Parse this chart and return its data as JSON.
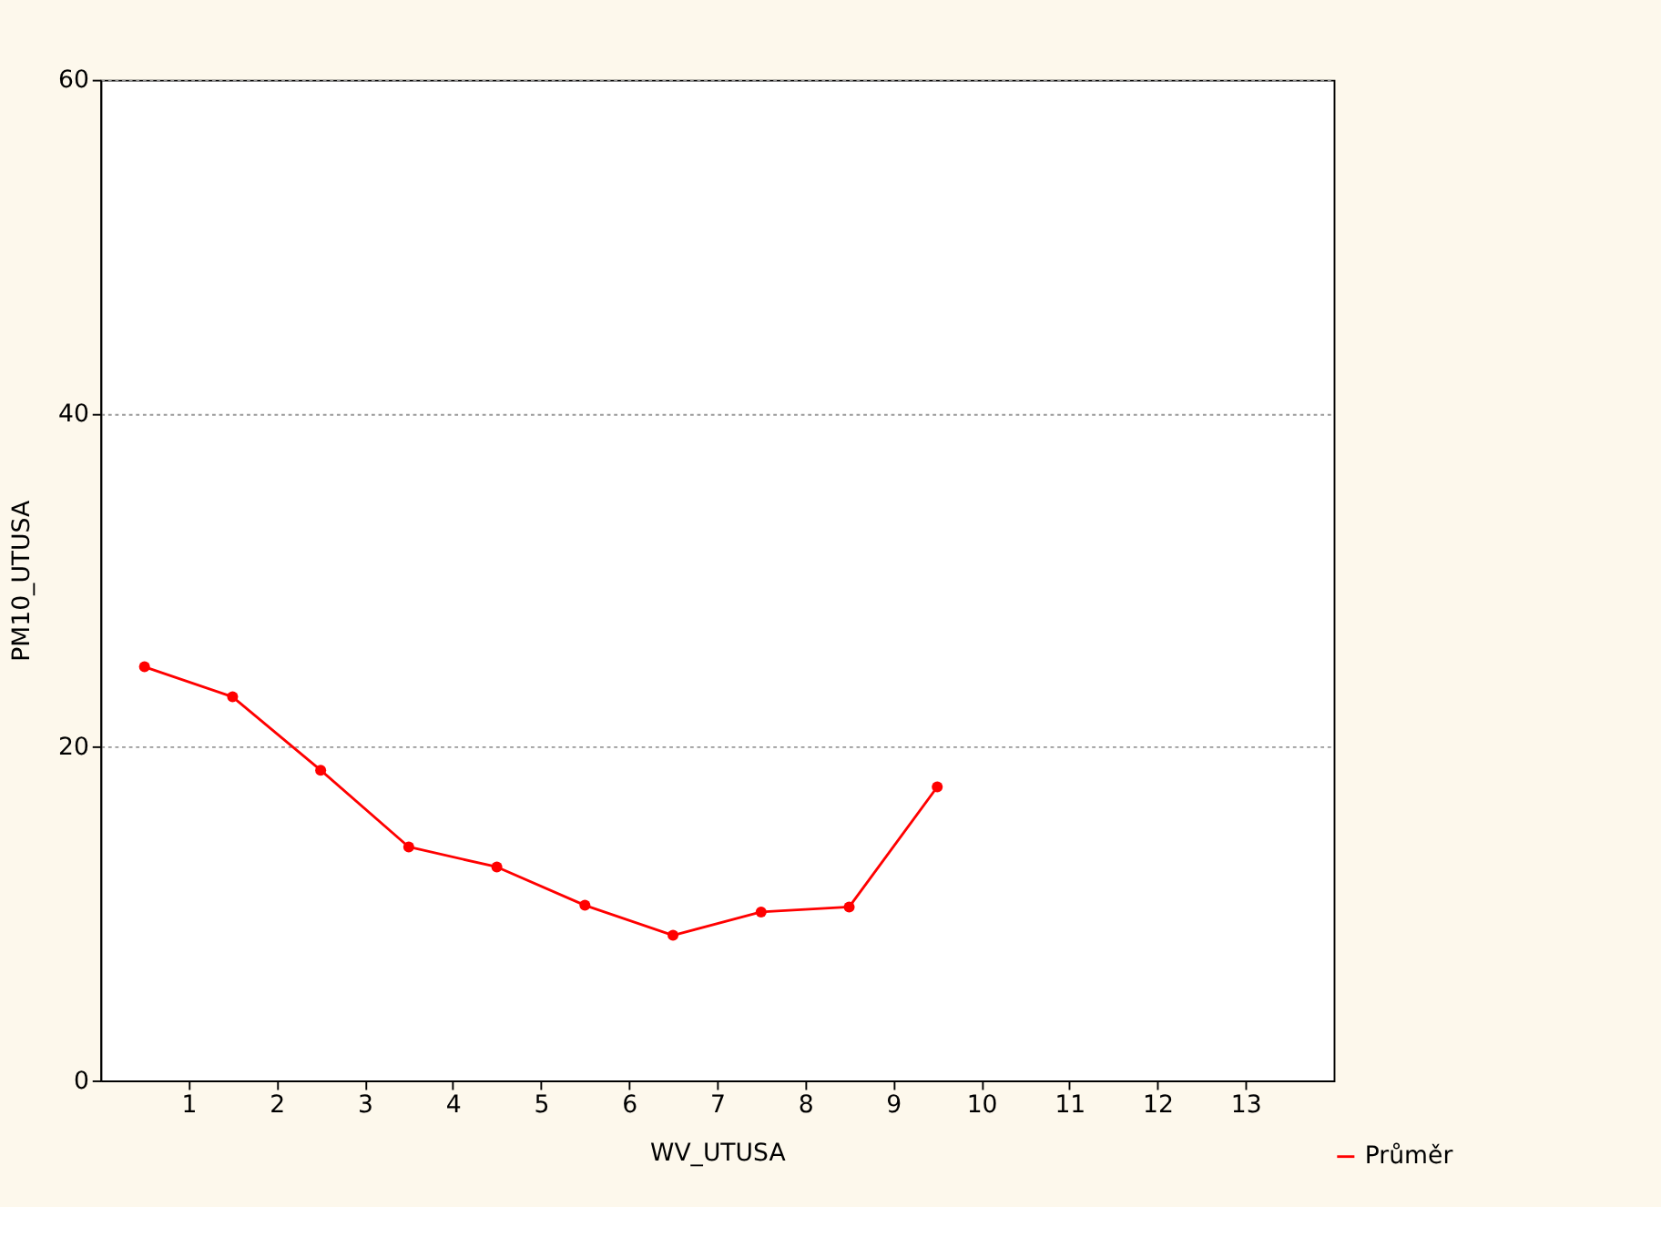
{
  "chart_data": {
    "type": "line",
    "xlabel": "WV_UTUSA",
    "ylabel": "PM10_UTUSA",
    "x": [
      0.5,
      1.5,
      2.5,
      3.5,
      4.5,
      5.5,
      6.5,
      7.5,
      8.5,
      9.5
    ],
    "series": [
      {
        "name": "Průměr",
        "color": "#ff0000",
        "values": [
          24.8,
          23.0,
          18.6,
          14.0,
          12.8,
          10.5,
          8.7,
          10.1,
          10.4,
          17.6
        ]
      }
    ],
    "xlim": [
      0,
      14
    ],
    "xticks": [
      1,
      2,
      3,
      4,
      5,
      6,
      7,
      8,
      9,
      10,
      11,
      12,
      13
    ],
    "ylim": [
      0,
      60
    ],
    "yticks": [
      0,
      20,
      40,
      60
    ],
    "grid": "y",
    "legend": "bottom right",
    "marker": "circle",
    "line_style": "solid"
  }
}
